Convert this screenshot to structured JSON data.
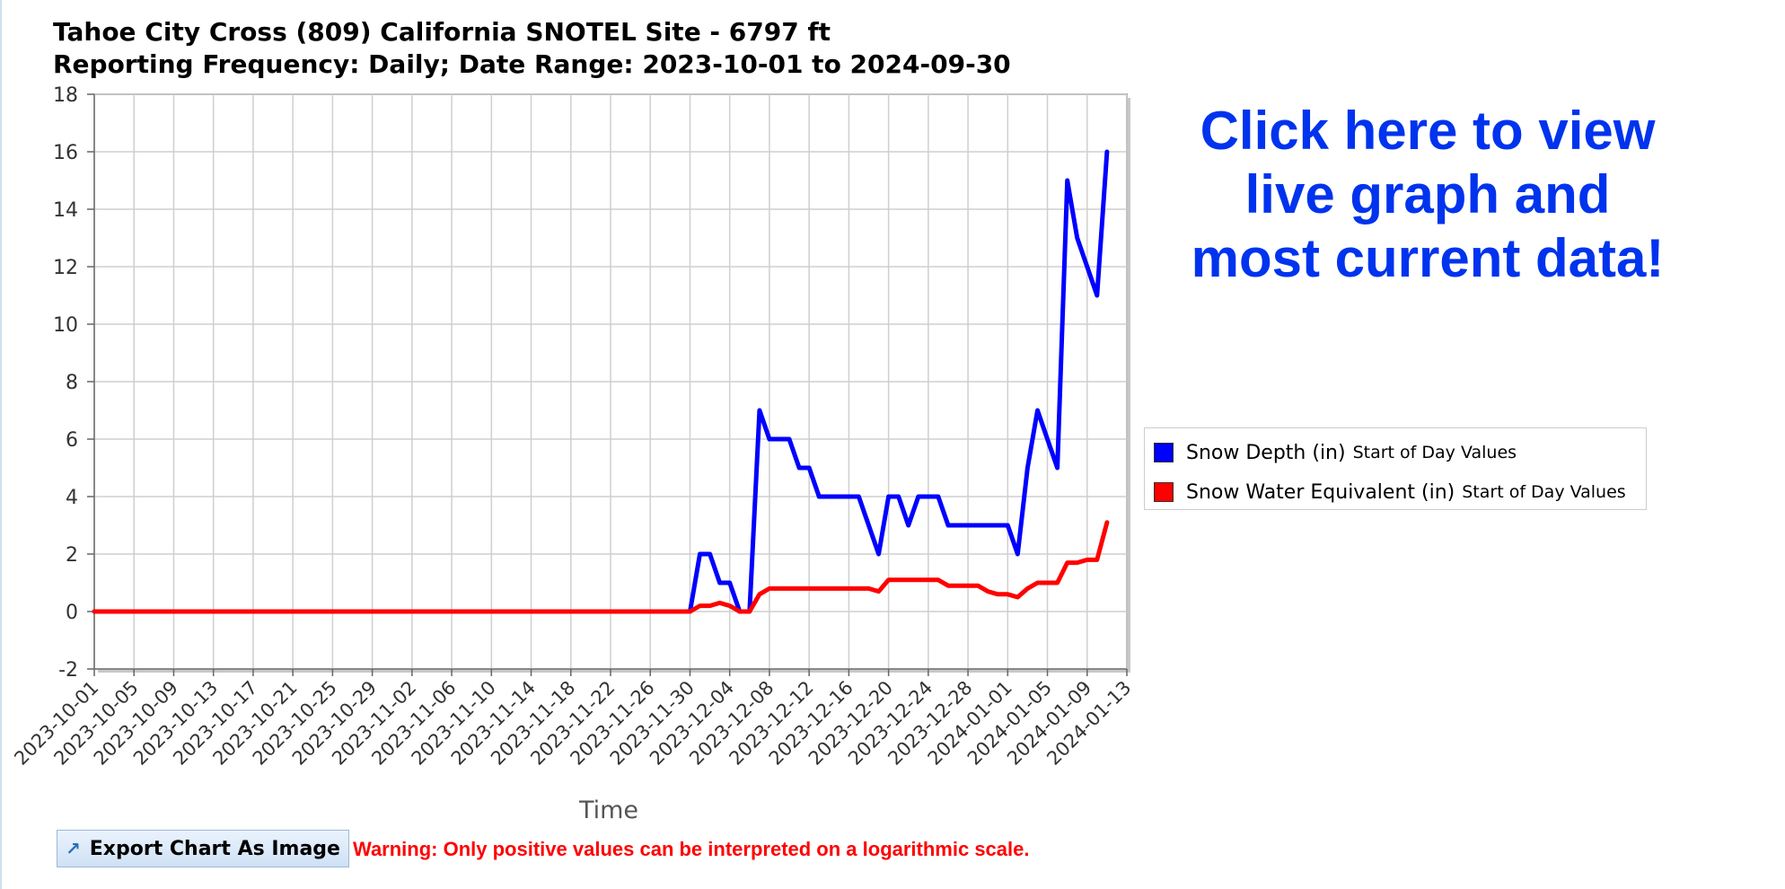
{
  "header": {
    "title_line1": "Tahoe City Cross (809) California SNOTEL Site - 6797 ft",
    "title_line2": "Reporting Frequency: Daily; Date Range: 2023-10-01 to 2024-09-30"
  },
  "live_link": {
    "line1": "Click here to view",
    "line2": "live graph and",
    "line3": "most current data!",
    "color": "#0033ee"
  },
  "legend": {
    "items": [
      {
        "name": "Snow Depth (in)",
        "sub": "Start of Day Values",
        "color": "#0000ff"
      },
      {
        "name": "Snow Water Equivalent (in)",
        "sub": "Start of Day Values",
        "color": "#ff0000"
      }
    ]
  },
  "export_button": {
    "label": "Export Chart As Image",
    "icon": "external-link-icon"
  },
  "warning": {
    "text": "Warning: Only positive values can be interpreted on a logarithmic scale.",
    "color": "#ff0000"
  },
  "chart_data": {
    "type": "line",
    "xlabel": "Time",
    "ylabel": "",
    "ylim": [
      -2,
      18
    ],
    "yticks": [
      -2,
      0,
      2,
      4,
      6,
      8,
      10,
      12,
      14,
      16,
      18
    ],
    "xlim": [
      "2023-10-01",
      "2024-01-13"
    ],
    "xticks": [
      "2023-10-01",
      "2023-10-05",
      "2023-10-09",
      "2023-10-13",
      "2023-10-17",
      "2023-10-21",
      "2023-10-25",
      "2023-10-29",
      "2023-11-02",
      "2023-11-06",
      "2023-11-10",
      "2023-11-14",
      "2023-11-18",
      "2023-11-22",
      "2023-11-26",
      "2023-11-30",
      "2023-12-04",
      "2023-12-08",
      "2023-12-12",
      "2023-12-16",
      "2023-12-20",
      "2023-12-24",
      "2023-12-28",
      "2024-01-01",
      "2024-01-05",
      "2024-01-09",
      "2024-01-13"
    ],
    "grid": true,
    "legend_position": "right",
    "series": [
      {
        "name": "Snow Depth (in) Start of Day Values",
        "color": "#0000ff",
        "points": [
          [
            "2023-10-01",
            0
          ],
          [
            "2023-11-30",
            0
          ],
          [
            "2023-12-01",
            2
          ],
          [
            "2023-12-02",
            2
          ],
          [
            "2023-12-03",
            1
          ],
          [
            "2023-12-04",
            1
          ],
          [
            "2023-12-05",
            0
          ],
          [
            "2023-12-06",
            0
          ],
          [
            "2023-12-07",
            7
          ],
          [
            "2023-12-08",
            6
          ],
          [
            "2023-12-09",
            6
          ],
          [
            "2023-12-10",
            6
          ],
          [
            "2023-12-11",
            5
          ],
          [
            "2023-12-12",
            5
          ],
          [
            "2023-12-13",
            4
          ],
          [
            "2023-12-14",
            4
          ],
          [
            "2023-12-15",
            4
          ],
          [
            "2023-12-16",
            4
          ],
          [
            "2023-12-17",
            4
          ],
          [
            "2023-12-18",
            3
          ],
          [
            "2023-12-19",
            2
          ],
          [
            "2023-12-20",
            4
          ],
          [
            "2023-12-21",
            4
          ],
          [
            "2023-12-22",
            3
          ],
          [
            "2023-12-23",
            4
          ],
          [
            "2023-12-24",
            4
          ],
          [
            "2023-12-25",
            4
          ],
          [
            "2023-12-26",
            3
          ],
          [
            "2023-12-27",
            3
          ],
          [
            "2023-12-28",
            3
          ],
          [
            "2023-12-29",
            3
          ],
          [
            "2023-12-30",
            3
          ],
          [
            "2023-12-31",
            3
          ],
          [
            "2024-01-01",
            3
          ],
          [
            "2024-01-02",
            2
          ],
          [
            "2024-01-03",
            5
          ],
          [
            "2024-01-04",
            7
          ],
          [
            "2024-01-05",
            6
          ],
          [
            "2024-01-06",
            5
          ],
          [
            "2024-01-07",
            15
          ],
          [
            "2024-01-08",
            13
          ],
          [
            "2024-01-09",
            12
          ],
          [
            "2024-01-10",
            11
          ],
          [
            "2024-01-11",
            16
          ]
        ]
      },
      {
        "name": "Snow Water Equivalent (in) Start of Day Values",
        "color": "#ff0000",
        "points": [
          [
            "2023-10-01",
            0
          ],
          [
            "2023-11-30",
            0
          ],
          [
            "2023-12-01",
            0.2
          ],
          [
            "2023-12-02",
            0.2
          ],
          [
            "2023-12-03",
            0.3
          ],
          [
            "2023-12-04",
            0.2
          ],
          [
            "2023-12-05",
            0
          ],
          [
            "2023-12-06",
            0
          ],
          [
            "2023-12-07",
            0.6
          ],
          [
            "2023-12-08",
            0.8
          ],
          [
            "2023-12-09",
            0.8
          ],
          [
            "2023-12-10",
            0.8
          ],
          [
            "2023-12-11",
            0.8
          ],
          [
            "2023-12-12",
            0.8
          ],
          [
            "2023-12-13",
            0.8
          ],
          [
            "2023-12-14",
            0.8
          ],
          [
            "2023-12-15",
            0.8
          ],
          [
            "2023-12-16",
            0.8
          ],
          [
            "2023-12-17",
            0.8
          ],
          [
            "2023-12-18",
            0.8
          ],
          [
            "2023-12-19",
            0.7
          ],
          [
            "2023-12-20",
            1.1
          ],
          [
            "2023-12-21",
            1.1
          ],
          [
            "2023-12-22",
            1.1
          ],
          [
            "2023-12-23",
            1.1
          ],
          [
            "2023-12-24",
            1.1
          ],
          [
            "2023-12-25",
            1.1
          ],
          [
            "2023-12-26",
            0.9
          ],
          [
            "2023-12-27",
            0.9
          ],
          [
            "2023-12-28",
            0.9
          ],
          [
            "2023-12-29",
            0.9
          ],
          [
            "2023-12-30",
            0.7
          ],
          [
            "2023-12-31",
            0.6
          ],
          [
            "2024-01-01",
            0.6
          ],
          [
            "2024-01-02",
            0.5
          ],
          [
            "2024-01-03",
            0.8
          ],
          [
            "2024-01-04",
            1.0
          ],
          [
            "2024-01-05",
            1.0
          ],
          [
            "2024-01-06",
            1.0
          ],
          [
            "2024-01-07",
            1.7
          ],
          [
            "2024-01-08",
            1.7
          ],
          [
            "2024-01-09",
            1.8
          ],
          [
            "2024-01-10",
            1.8
          ],
          [
            "2024-01-11",
            3.1
          ]
        ]
      }
    ]
  }
}
